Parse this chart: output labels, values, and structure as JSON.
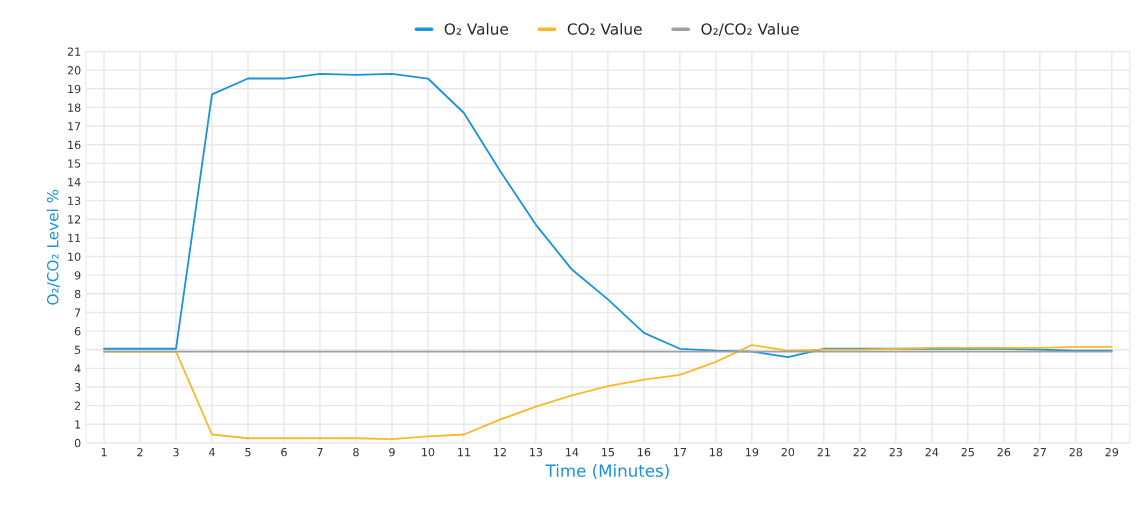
{
  "chart_data": {
    "type": "line",
    "xlabel": "Time (Minutes)",
    "ylabel": "O₂/CO₂ Level %",
    "categories": [
      "1",
      "2",
      "3",
      "4",
      "5",
      "6",
      "7",
      "8",
      "9",
      "10",
      "11",
      "12",
      "13",
      "14",
      "15",
      "16",
      "17",
      "18",
      "19",
      "20",
      "21",
      "22",
      "23",
      "24",
      "25",
      "26",
      "27",
      "28",
      "29"
    ],
    "series": [
      {
        "name": "O₂ Value",
        "color": "#1a94d9",
        "values": [
          5.05,
          5.05,
          5.05,
          18.7,
          19.55,
          19.55,
          19.8,
          19.75,
          19.8,
          19.55,
          17.7,
          14.6,
          11.7,
          9.3,
          7.7,
          5.9,
          5.05,
          4.95,
          4.9,
          4.6,
          5.05,
          5.05,
          5.05,
          5.05,
          5.05,
          5.05,
          5.0,
          4.95,
          4.95
        ]
      },
      {
        "name": "CO₂ Value",
        "color": "#fbb829",
        "values": [
          4.9,
          4.9,
          4.9,
          0.45,
          0.25,
          0.25,
          0.25,
          0.25,
          0.2,
          0.35,
          0.45,
          1.25,
          1.95,
          2.55,
          3.05,
          3.4,
          3.65,
          4.35,
          5.25,
          4.95,
          5.0,
          5.0,
          5.05,
          5.1,
          5.1,
          5.1,
          5.1,
          5.15,
          5.15
        ]
      },
      {
        "name": "O₂/CO₂ Value",
        "color": "#a0a0a0",
        "values": [
          4.9,
          4.9,
          4.9,
          4.9,
          4.9,
          4.9,
          4.9,
          4.9,
          4.9,
          4.9,
          4.9,
          4.9,
          4.9,
          4.9,
          4.9,
          4.9,
          4.9,
          4.9,
          4.9,
          4.9,
          4.9,
          4.9,
          4.9,
          4.9,
          4.9,
          4.9,
          4.9,
          4.9,
          4.9
        ]
      }
    ],
    "ylim": [
      0,
      21
    ],
    "yticks": [
      0,
      1,
      2,
      3,
      4,
      5,
      6,
      7,
      8,
      9,
      10,
      11,
      12,
      13,
      14,
      15,
      16,
      17,
      18,
      19,
      20,
      21
    ],
    "grid": true,
    "legend": "top",
    "marker": "none",
    "line_style": "solid"
  }
}
